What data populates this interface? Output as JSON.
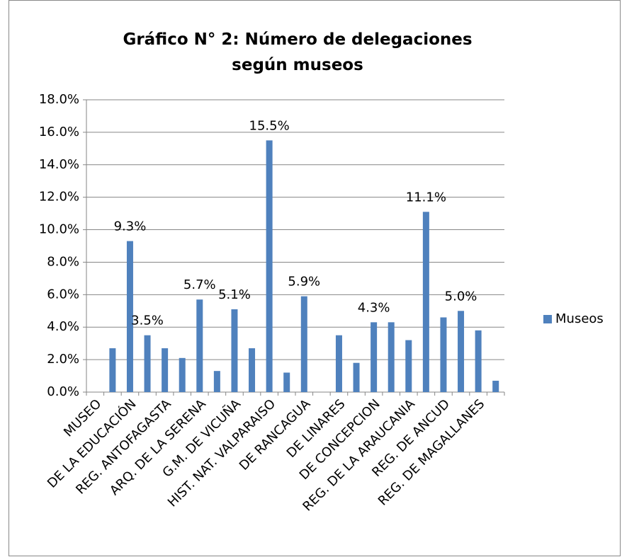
{
  "chart_data": {
    "type": "bar",
    "title": "Gráfico N° 2: Número de delegaciones según museos",
    "categories": [
      "MUSEO",
      null,
      "DE LA EDUCACIÓN",
      null,
      "REG. ANTOFAGASTA",
      null,
      "ARQ. DE LA SERENA",
      null,
      "G.M. DE VICUÑA",
      null,
      "HIST. NAT. VALPARAISO",
      null,
      "DE RANCAGUA",
      null,
      "DE LINARES",
      null,
      "DE CONCEPCION",
      null,
      "REG. DE LA ARAUCANIA",
      null,
      "REG. DE ANCUD",
      null,
      "REG. DE MAGALLANES",
      null
    ],
    "series": [
      {
        "name": "Museos",
        "color": "#4f81bd",
        "values": [
          null,
          2.7,
          9.3,
          3.5,
          2.7,
          2.1,
          5.7,
          1.3,
          5.1,
          2.7,
          15.5,
          1.2,
          5.9,
          null,
          3.5,
          1.8,
          4.3,
          4.3,
          3.2,
          11.1,
          4.6,
          5.0,
          3.8,
          0.7
        ],
        "value_labels": [
          null,
          null,
          "9.3%",
          "3.5%",
          null,
          null,
          "5.7%",
          null,
          "5.1%",
          null,
          "15.5%",
          null,
          "5.9%",
          null,
          null,
          null,
          "4.3%",
          null,
          null,
          "11.1%",
          null,
          "5.0%",
          null,
          null
        ]
      }
    ],
    "ylim": [
      0,
      18
    ],
    "yticks": [
      {
        "value": 0,
        "label": "0.0%"
      },
      {
        "value": 2,
        "label": "2.0%"
      },
      {
        "value": 4,
        "label": "4.0%"
      },
      {
        "value": 6,
        "label": "6.0%"
      },
      {
        "value": 8,
        "label": "8.0%"
      },
      {
        "value": 10,
        "label": "10.0%"
      },
      {
        "value": 12,
        "label": "12.0%"
      },
      {
        "value": 14,
        "label": "14.0%"
      },
      {
        "value": 16,
        "label": "16.0%"
      },
      {
        "value": 18,
        "label": "18.0%"
      }
    ],
    "grid": true,
    "legend": "right"
  }
}
